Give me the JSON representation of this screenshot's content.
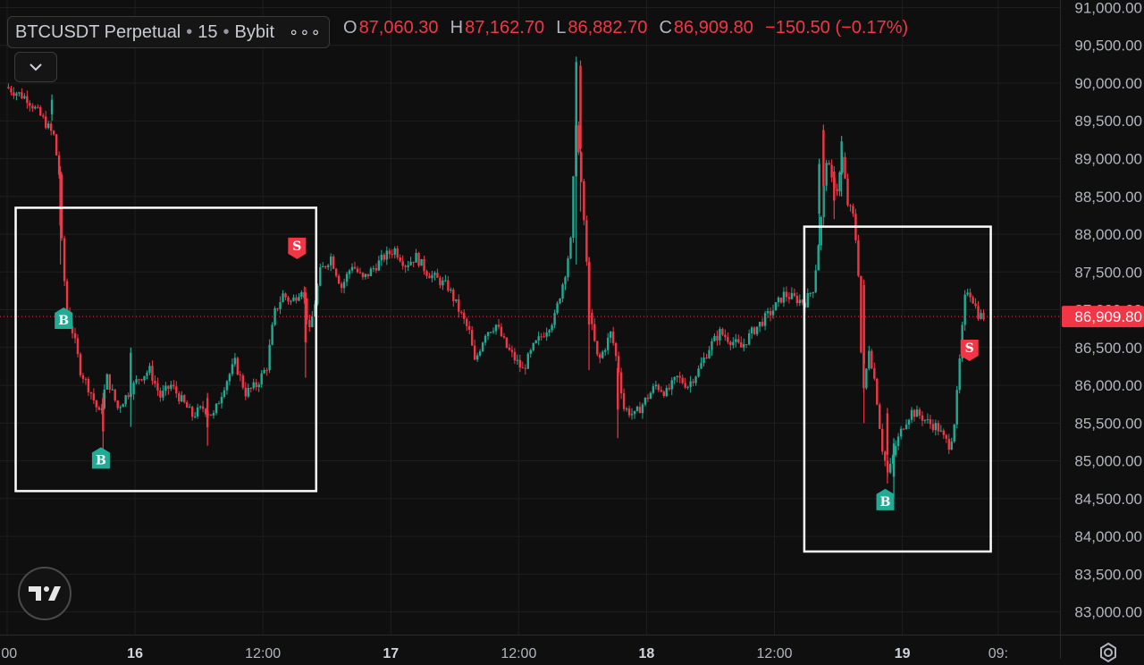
{
  "legend": {
    "symbol": "BTCUSDT Perpetual",
    "interval": "15",
    "exchange": "Bybit",
    "dot": "•",
    "more": "∘∘∘"
  },
  "ohlc": {
    "o_label": "O",
    "o_value": "87,060.30",
    "h_label": "H",
    "h_value": "87,162.70",
    "l_label": "L",
    "l_value": "86,882.70",
    "c_label": "C",
    "c_value": "86,909.80",
    "change": "−150.50 (−0.17%)"
  },
  "colors": {
    "background": "#0f0f0f",
    "grid": "#1e1e1e",
    "up": "#22ab94",
    "down": "#f23645",
    "last_price_bg": "#f23645",
    "box": "#ffffff",
    "axis_text": "#b2b5be"
  },
  "icons": {
    "collapse": "chevron-down-icon",
    "logo": "tradingview-logo-icon",
    "settings": "gear-icon"
  },
  "chart_data": {
    "type": "candlestick",
    "ylim": [
      82700,
      91100
    ],
    "y_ticks": [
      {
        "value": 91000,
        "label": "91,000.00"
      },
      {
        "value": 90500,
        "label": "90,500.00"
      },
      {
        "value": 90000,
        "label": "90,000.00"
      },
      {
        "value": 89500,
        "label": "89,500.00"
      },
      {
        "value": 89000,
        "label": "89,000.00"
      },
      {
        "value": 88500,
        "label": "88,500.00"
      },
      {
        "value": 88000,
        "label": "88,000.00"
      },
      {
        "value": 87500,
        "label": "87,500.00"
      },
      {
        "value": 87000,
        "label": "87,000.00"
      },
      {
        "value": 86500,
        "label": "86,500.00"
      },
      {
        "value": 86000,
        "label": "86,000.00"
      },
      {
        "value": 85500,
        "label": "85,500.00"
      },
      {
        "value": 85000,
        "label": "85,000.00"
      },
      {
        "value": 84500,
        "label": "84,500.00"
      },
      {
        "value": 84000,
        "label": "84,000.00"
      },
      {
        "value": 83500,
        "label": "83,500.00"
      },
      {
        "value": 83000,
        "label": "83,000.00"
      }
    ],
    "time_range_hours": [
      0,
      105
    ],
    "x_ticks": [
      {
        "hour": 0,
        "label": ":00",
        "bold": false
      },
      {
        "hour": 12,
        "label": "16",
        "bold": true
      },
      {
        "hour": 24,
        "label": "12:00",
        "bold": false
      },
      {
        "hour": 36,
        "label": "17",
        "bold": true
      },
      {
        "hour": 48,
        "label": "12:00",
        "bold": false
      },
      {
        "hour": 60,
        "label": "18",
        "bold": true
      },
      {
        "hour": 72,
        "label": "12:00",
        "bold": false
      },
      {
        "hour": 84,
        "label": "19",
        "bold": true
      },
      {
        "hour": 93,
        "label": "09:",
        "bold": false
      }
    ],
    "last_price": {
      "value": 86909.8,
      "label": "86,909.80"
    },
    "keypoints": [
      [
        0,
        89950
      ],
      [
        2,
        89800
      ],
      [
        3.5,
        89520
      ],
      [
        4.5,
        89300
      ],
      [
        5,
        88800
      ],
      [
        5.3,
        87700
      ],
      [
        5.8,
        86900
      ],
      [
        6.3,
        86700
      ],
      [
        7,
        86200
      ],
      [
        8,
        85900
      ],
      [
        8.8,
        85600
      ],
      [
        9.5,
        86100
      ],
      [
        10.5,
        85700
      ],
      [
        11.5,
        85900
      ],
      [
        12.5,
        86100
      ],
      [
        13.5,
        86200
      ],
      [
        14.5,
        85850
      ],
      [
        15.5,
        86000
      ],
      [
        16.5,
        85800
      ],
      [
        17.5,
        85600
      ],
      [
        18.5,
        85700
      ],
      [
        19.5,
        85600
      ],
      [
        20.5,
        86000
      ],
      [
        21.5,
        86300
      ],
      [
        22.5,
        85900
      ],
      [
        23.5,
        86000
      ],
      [
        24.5,
        86250
      ],
      [
        25.2,
        86950
      ],
      [
        26,
        87200
      ],
      [
        26.8,
        87100
      ],
      [
        27.8,
        87300
      ],
      [
        28.5,
        86700
      ],
      [
        29.5,
        87500
      ],
      [
        30.5,
        87700
      ],
      [
        31.5,
        87300
      ],
      [
        32.5,
        87600
      ],
      [
        33.5,
        87400
      ],
      [
        34.5,
        87550
      ],
      [
        35.5,
        87700
      ],
      [
        36.5,
        87800
      ],
      [
        37.5,
        87600
      ],
      [
        38.5,
        87700
      ],
      [
        39.5,
        87500
      ],
      [
        40.5,
        87400
      ],
      [
        41.5,
        87300
      ],
      [
        42.5,
        87000
      ],
      [
        43.5,
        86700
      ],
      [
        44,
        86300
      ],
      [
        45,
        86700
      ],
      [
        46,
        86800
      ],
      [
        47,
        86500
      ],
      [
        48,
        86300
      ],
      [
        48.5,
        86200
      ],
      [
        49.5,
        86500
      ],
      [
        50.5,
        86700
      ],
      [
        51.5,
        86900
      ],
      [
        52.5,
        87500
      ],
      [
        53,
        87900
      ],
      [
        53.5,
        89500
      ],
      [
        54.2,
        88300
      ],
      [
        54.8,
        86900
      ],
      [
        55.6,
        86300
      ],
      [
        56.2,
        86500
      ],
      [
        56.8,
        86700
      ],
      [
        57.5,
        86200
      ],
      [
        58,
        85700
      ],
      [
        59,
        85600
      ],
      [
        60,
        85800
      ],
      [
        61,
        86000
      ],
      [
        62,
        85900
      ],
      [
        63,
        86100
      ],
      [
        64,
        86000
      ],
      [
        65,
        86200
      ],
      [
        66,
        86500
      ],
      [
        67,
        86700
      ],
      [
        68,
        86600
      ],
      [
        69,
        86500
      ],
      [
        70,
        86700
      ],
      [
        71,
        86850
      ],
      [
        72,
        87000
      ],
      [
        73,
        87200
      ],
      [
        74,
        87150
      ],
      [
        75,
        87100
      ],
      [
        75.8,
        87300
      ],
      [
        76.5,
        88200
      ],
      [
        77,
        89000
      ],
      [
        77.5,
        88700
      ],
      [
        78,
        88600
      ],
      [
        78.5,
        89000
      ],
      [
        79,
        88400
      ],
      [
        79.6,
        88200
      ],
      [
        80,
        87500
      ],
      [
        80.4,
        85800
      ],
      [
        81,
        86500
      ],
      [
        81.6,
        86000
      ],
      [
        82.2,
        85200
      ],
      [
        82.8,
        84800
      ],
      [
        83.5,
        85200
      ],
      [
        84.3,
        85500
      ],
      [
        85,
        85650
      ],
      [
        85.8,
        85600
      ],
      [
        86.6,
        85500
      ],
      [
        87.4,
        85450
      ],
      [
        88,
        85300
      ],
      [
        88.6,
        85200
      ],
      [
        89.1,
        85600
      ],
      [
        89.6,
        86500
      ],
      [
        90.1,
        87300
      ],
      [
        90.6,
        87200
      ],
      [
        91.2,
        86950
      ],
      [
        91.6,
        86909.8
      ]
    ],
    "spikes": [
      [
        4.2,
        89500,
        89850,
        true
      ],
      [
        5.0,
        87600,
        88900,
        false
      ],
      [
        9.0,
        85100,
        85900,
        false
      ],
      [
        11.6,
        85450,
        86500,
        true
      ],
      [
        18.8,
        85200,
        85900,
        false
      ],
      [
        28.0,
        86100,
        87300,
        false
      ],
      [
        29.0,
        86900,
        88000,
        true
      ],
      [
        53.4,
        87600,
        90350,
        true
      ],
      [
        53.8,
        88300,
        90300,
        false
      ],
      [
        54.6,
        86200,
        87700,
        false
      ],
      [
        57.3,
        85300,
        86300,
        false
      ],
      [
        76.2,
        87800,
        89000,
        true
      ],
      [
        76.6,
        88100,
        89450,
        false
      ],
      [
        77.6,
        88200,
        88900,
        false
      ],
      [
        78.3,
        88500,
        89300,
        true
      ],
      [
        80.4,
        85500,
        87400,
        false
      ],
      [
        82.6,
        84700,
        85700,
        false
      ],
      [
        83.2,
        84500,
        85300,
        true
      ]
    ],
    "boxes": [
      {
        "x0": 0.8,
        "x1": 29.0,
        "y0": 88350,
        "y1": 84600
      },
      {
        "x0": 74.8,
        "x1": 92.3,
        "y0": 88100,
        "y1": 83800
      }
    ],
    "markers": [
      {
        "hour": 5.3,
        "price": 86900,
        "text": "B",
        "side": "buy"
      },
      {
        "hour": 8.8,
        "price": 85050,
        "text": "B",
        "side": "buy"
      },
      {
        "hour": 27.2,
        "price": 87800,
        "text": "S",
        "side": "sell"
      },
      {
        "hour": 82.4,
        "price": 84500,
        "text": "B",
        "side": "buy"
      },
      {
        "hour": 90.3,
        "price": 86450,
        "text": "S",
        "side": "sell"
      }
    ]
  }
}
